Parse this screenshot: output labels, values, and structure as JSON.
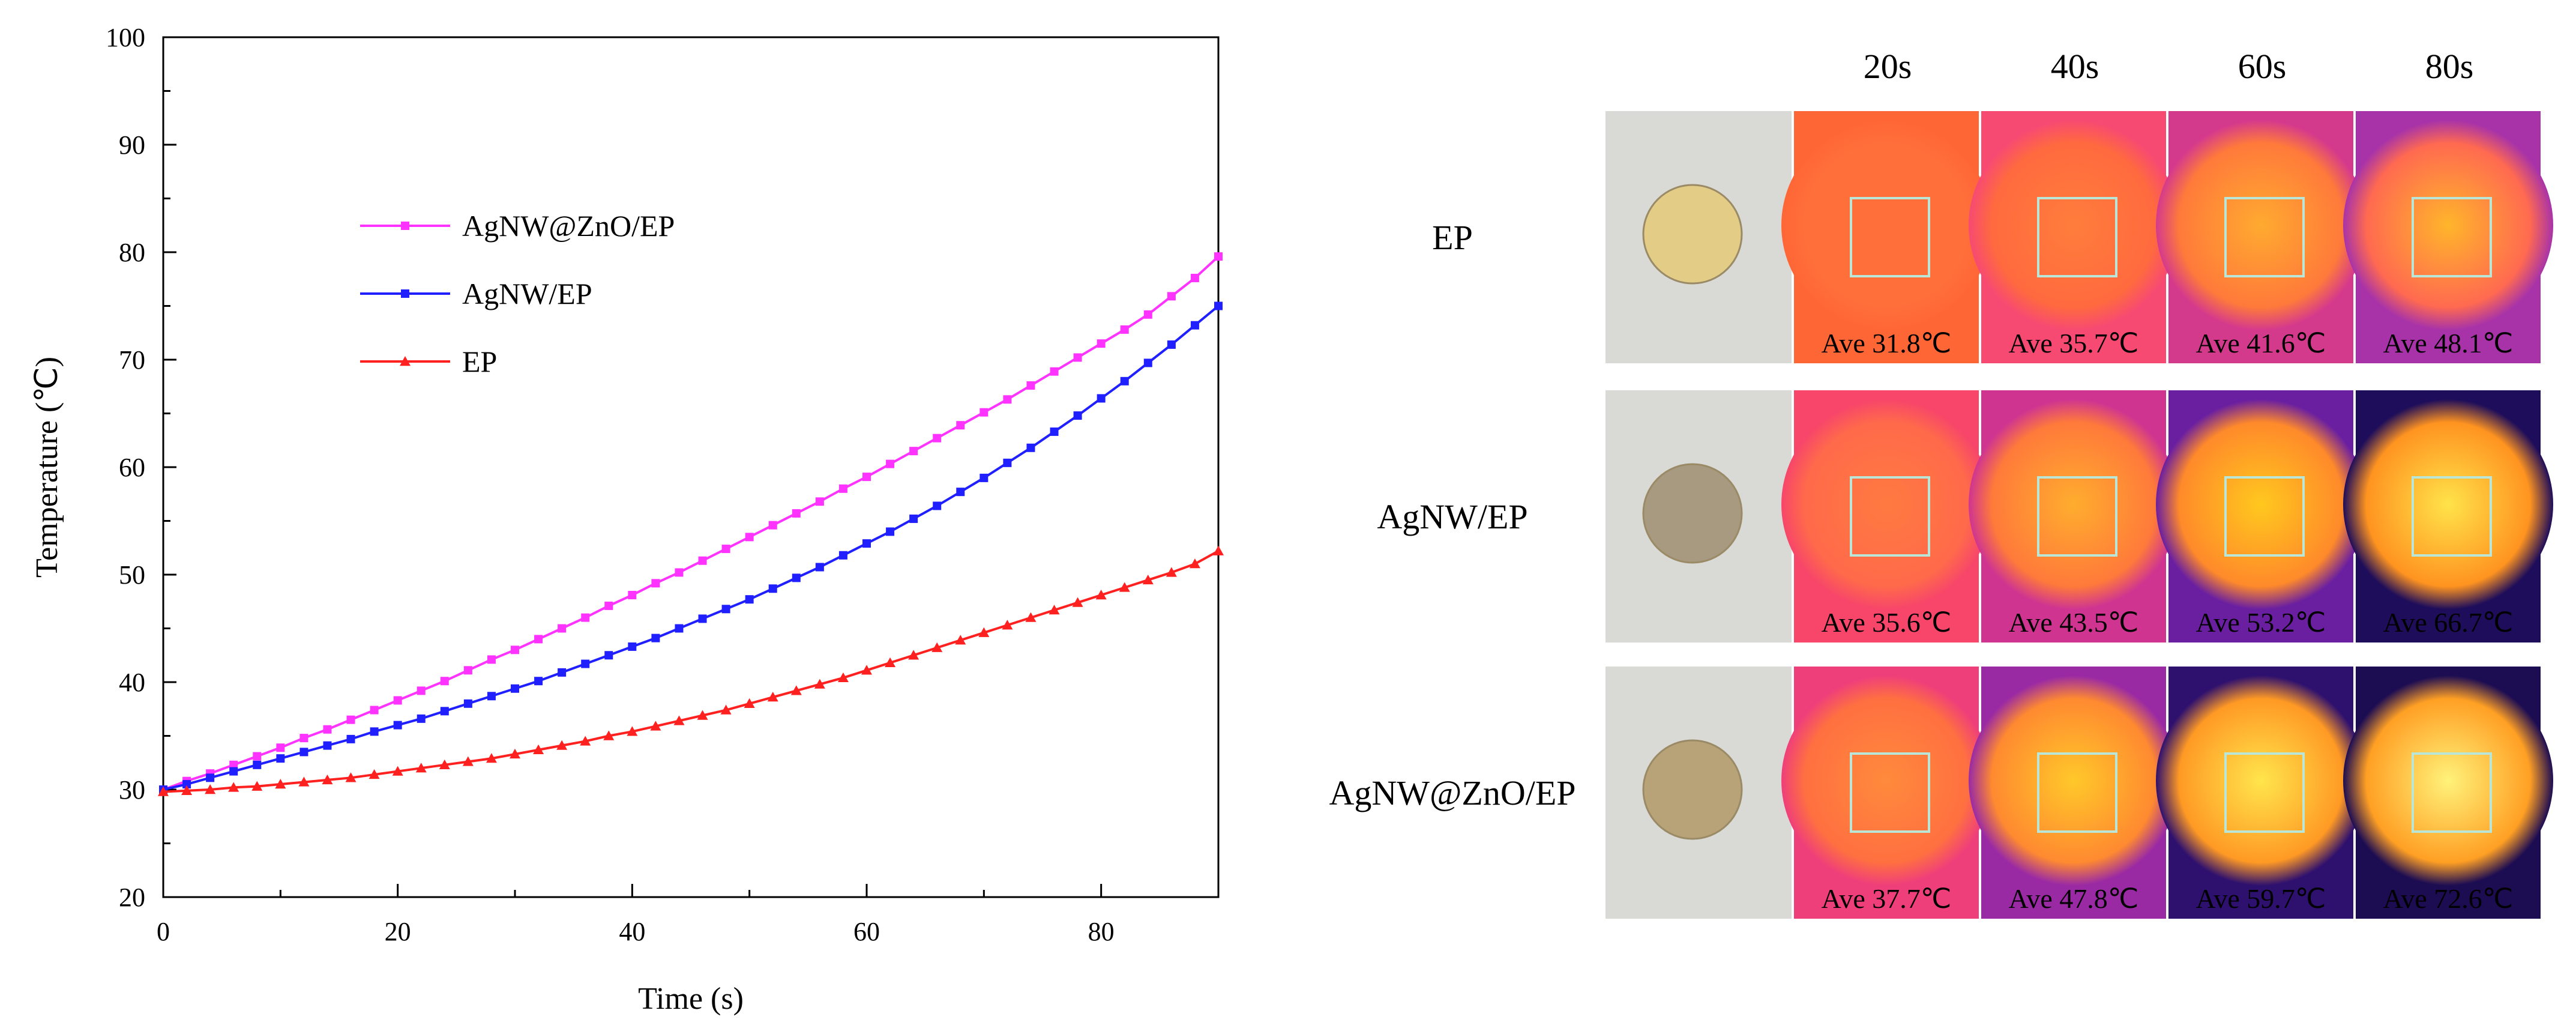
{
  "chart_data": {
    "type": "line",
    "xlabel": "Time (s)",
    "ylabel": "Temperature (℃)",
    "xlim": [
      0,
      90
    ],
    "ylim": [
      20,
      100
    ],
    "xticks": [
      0,
      20,
      40,
      60,
      80
    ],
    "yticks": [
      20,
      30,
      40,
      50,
      60,
      70,
      80,
      90,
      100
    ],
    "x": [
      0,
      2,
      4,
      6,
      8,
      10,
      12,
      14,
      16,
      18,
      20,
      22,
      24,
      26,
      28,
      30,
      32,
      34,
      36,
      38,
      40,
      42,
      44,
      46,
      48,
      50,
      52,
      54,
      56,
      58,
      60,
      62,
      64,
      66,
      68,
      70,
      72,
      74,
      76,
      78,
      80,
      82,
      84,
      86,
      88,
      90
    ],
    "legend_position": "upper-left",
    "series": [
      {
        "name": "AgNW@ZnO/EP",
        "color": "#ff33ff",
        "marker": "square",
        "values": [
          30.0,
          30.8,
          31.5,
          32.3,
          33.1,
          33.9,
          34.8,
          35.6,
          36.5,
          37.4,
          38.3,
          39.2,
          40.1,
          41.1,
          42.1,
          43.0,
          44.0,
          45.0,
          46.0,
          47.1,
          48.1,
          49.2,
          50.2,
          51.3,
          52.4,
          53.5,
          54.6,
          55.7,
          56.8,
          58.0,
          59.1,
          60.3,
          61.5,
          62.7,
          63.9,
          65.1,
          66.3,
          67.6,
          68.9,
          70.2,
          71.5,
          72.8,
          74.2,
          75.9,
          77.6,
          79.6
        ]
      },
      {
        "name": "AgNW/EP",
        "color": "#1f1fff",
        "marker": "square",
        "values": [
          30.0,
          30.5,
          31.1,
          31.7,
          32.3,
          32.9,
          33.5,
          34.1,
          34.7,
          35.4,
          36.0,
          36.6,
          37.3,
          38.0,
          38.7,
          39.4,
          40.1,
          40.9,
          41.7,
          42.5,
          43.3,
          44.1,
          45.0,
          45.9,
          46.8,
          47.7,
          48.7,
          49.7,
          50.7,
          51.8,
          52.9,
          54.0,
          55.2,
          56.4,
          57.7,
          59.0,
          60.4,
          61.8,
          63.3,
          64.8,
          66.4,
          68.0,
          69.7,
          71.4,
          73.2,
          75.0
        ]
      },
      {
        "name": "EP",
        "color": "#ff2020",
        "marker": "triangle",
        "values": [
          29.8,
          29.9,
          30.0,
          30.2,
          30.3,
          30.5,
          30.7,
          30.9,
          31.1,
          31.4,
          31.7,
          32.0,
          32.3,
          32.6,
          32.9,
          33.3,
          33.7,
          34.1,
          34.5,
          35.0,
          35.4,
          35.9,
          36.4,
          36.9,
          37.4,
          38.0,
          38.6,
          39.2,
          39.8,
          40.4,
          41.1,
          41.8,
          42.5,
          43.2,
          43.9,
          44.6,
          45.3,
          46.0,
          46.7,
          47.4,
          48.1,
          48.8,
          49.5,
          50.2,
          51.0,
          52.2
        ]
      }
    ]
  },
  "thermal_panel": {
    "time_labels": [
      "20s",
      "40s",
      "60s",
      "80s"
    ],
    "rows": [
      {
        "label": "EP",
        "sample_color": "#e3cc86",
        "cells": [
          {
            "ave": "Ave 31.8℃",
            "bg": "#ff6636",
            "spot": "#ff6f3a",
            "glow": "#ff6f3a"
          },
          {
            "ave": "Ave 35.7℃",
            "bg": "#f74a72",
            "spot": "#ff7d3c",
            "glow": "#ff6a3e"
          },
          {
            "ave": "Ave 41.6℃",
            "bg": "#d43a8c",
            "spot": "#ffaa30",
            "glow": "#ff7a3a"
          },
          {
            "ave": "Ave 48.1℃",
            "bg": "#a833a8",
            "spot": "#ffb52b",
            "glow": "#ff6a50"
          }
        ]
      },
      {
        "label": "AgNW/EP",
        "sample_color": "#a89a80",
        "cells": [
          {
            "ave": "Ave 35.6℃",
            "bg": "#f7466a",
            "spot": "#ff7a40",
            "glow": "#ff6a4a"
          },
          {
            "ave": "Ave 43.5℃",
            "bg": "#cf3590",
            "spot": "#ffad2e",
            "glow": "#ff7a3a"
          },
          {
            "ave": "Ave 53.2℃",
            "bg": "#6a1fa0",
            "spot": "#ffc81e",
            "glow": "#ff8a2a"
          },
          {
            "ave": "Ave 66.7℃",
            "bg": "#1e0d5a",
            "spot": "#ffe34a",
            "glow": "#ff9420"
          }
        ]
      },
      {
        "label": "AgNW@ZnO/EP",
        "sample_color": "#b8a278",
        "cells": [
          {
            "ave": "Ave 37.7℃",
            "bg": "#ef3f7a",
            "spot": "#ff8a3c",
            "glow": "#ff7040"
          },
          {
            "ave": "Ave 47.8℃",
            "bg": "#9a2aa4",
            "spot": "#ffc82a",
            "glow": "#ff8a30"
          },
          {
            "ave": "Ave 59.7℃",
            "bg": "#2e106e",
            "spot": "#ffe54c",
            "glow": "#ff9a24"
          },
          {
            "ave": "Ave 72.6℃",
            "bg": "#1c0c52",
            "spot": "#fff27a",
            "glow": "#ffa024"
          }
        ]
      }
    ]
  }
}
